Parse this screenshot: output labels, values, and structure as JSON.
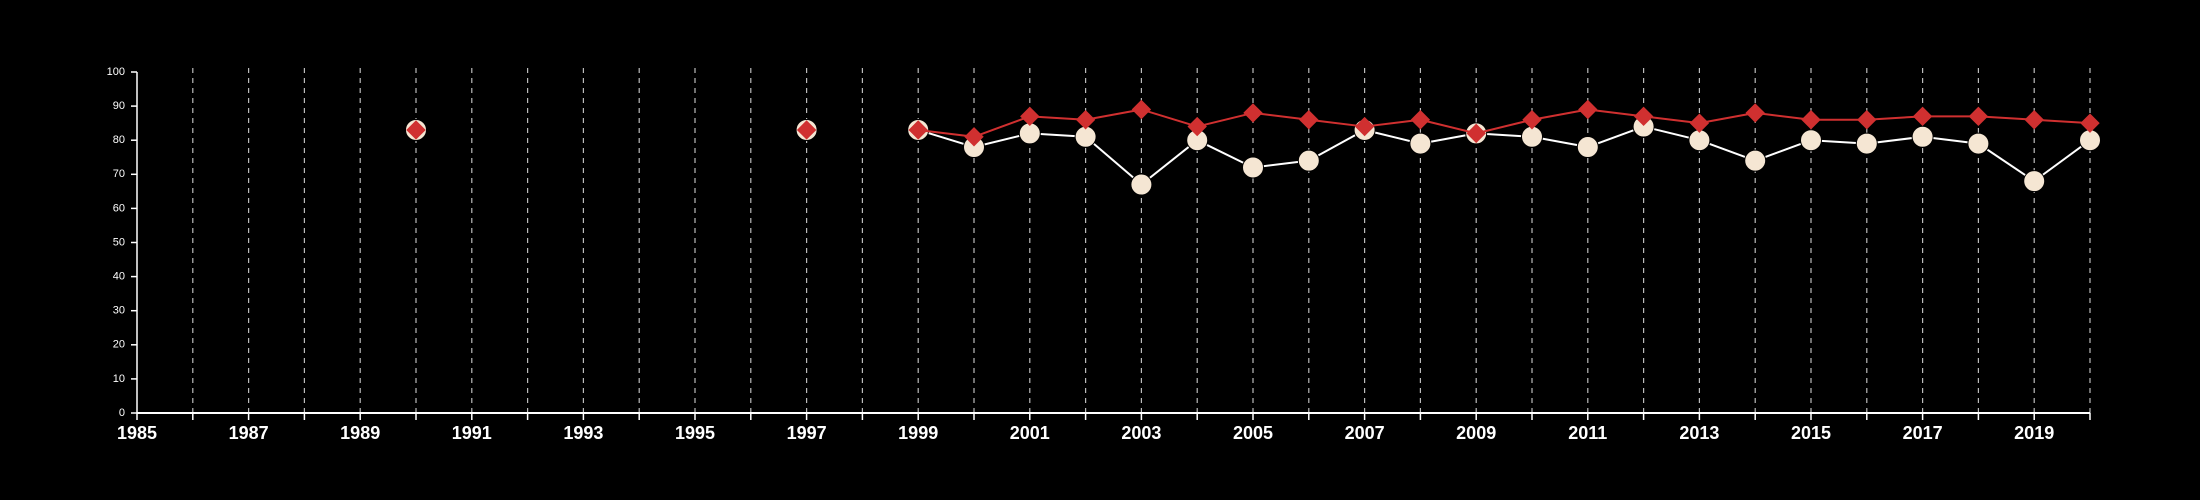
{
  "colors": {
    "background": "#000000",
    "axis": "#ffffff",
    "grid": "#bbbbbb",
    "series_a_line": "#ffffff",
    "series_a_marker": "#f5e6d3",
    "series_b": "#d03030"
  },
  "chart_data": {
    "type": "line",
    "title": "",
    "xlabel": "",
    "ylabel": "",
    "xlim": [
      1985,
      2020
    ],
    "ylim": [
      0,
      100
    ],
    "x_ticks": [
      "1985",
      "1987",
      "1989",
      "1991",
      "1993",
      "1995",
      "1997",
      "1999",
      "2001",
      "2003",
      "2005",
      "2007",
      "2009",
      "2011",
      "2013",
      "2015",
      "2017",
      "2019"
    ],
    "y_ticks": [
      "0",
      "10",
      "20",
      "30",
      "40",
      "50",
      "60",
      "70",
      "80",
      "90",
      "100"
    ],
    "grid": "vertical dashed lines at every year",
    "legend": "none",
    "series": [
      {
        "marker": "circle",
        "x": [
          1990,
          1997,
          1999,
          2000,
          2001,
          2002,
          2003,
          2004,
          2005,
          2006,
          2007,
          2008,
          2009,
          2010,
          2011,
          2012,
          2013,
          2014,
          2015,
          2016,
          2017,
          2018,
          2019,
          2020
        ],
        "y": [
          83,
          83,
          83,
          78,
          82,
          81,
          67,
          80,
          72,
          74,
          83,
          79,
          82,
          81,
          78,
          84,
          80,
          74,
          80,
          79,
          81,
          79,
          68,
          80
        ]
      },
      {
        "marker": "diamond",
        "x": [
          1990,
          1997,
          1999,
          2000,
          2001,
          2002,
          2003,
          2004,
          2005,
          2006,
          2007,
          2008,
          2009,
          2010,
          2011,
          2012,
          2013,
          2014,
          2015,
          2016,
          2017,
          2018,
          2019,
          2020
        ],
        "y": [
          83,
          83,
          83,
          81,
          87,
          86,
          89,
          84,
          88,
          86,
          84,
          86,
          82,
          86,
          89,
          87,
          85,
          88,
          86,
          86,
          87,
          87,
          86,
          85
        ]
      }
    ]
  }
}
